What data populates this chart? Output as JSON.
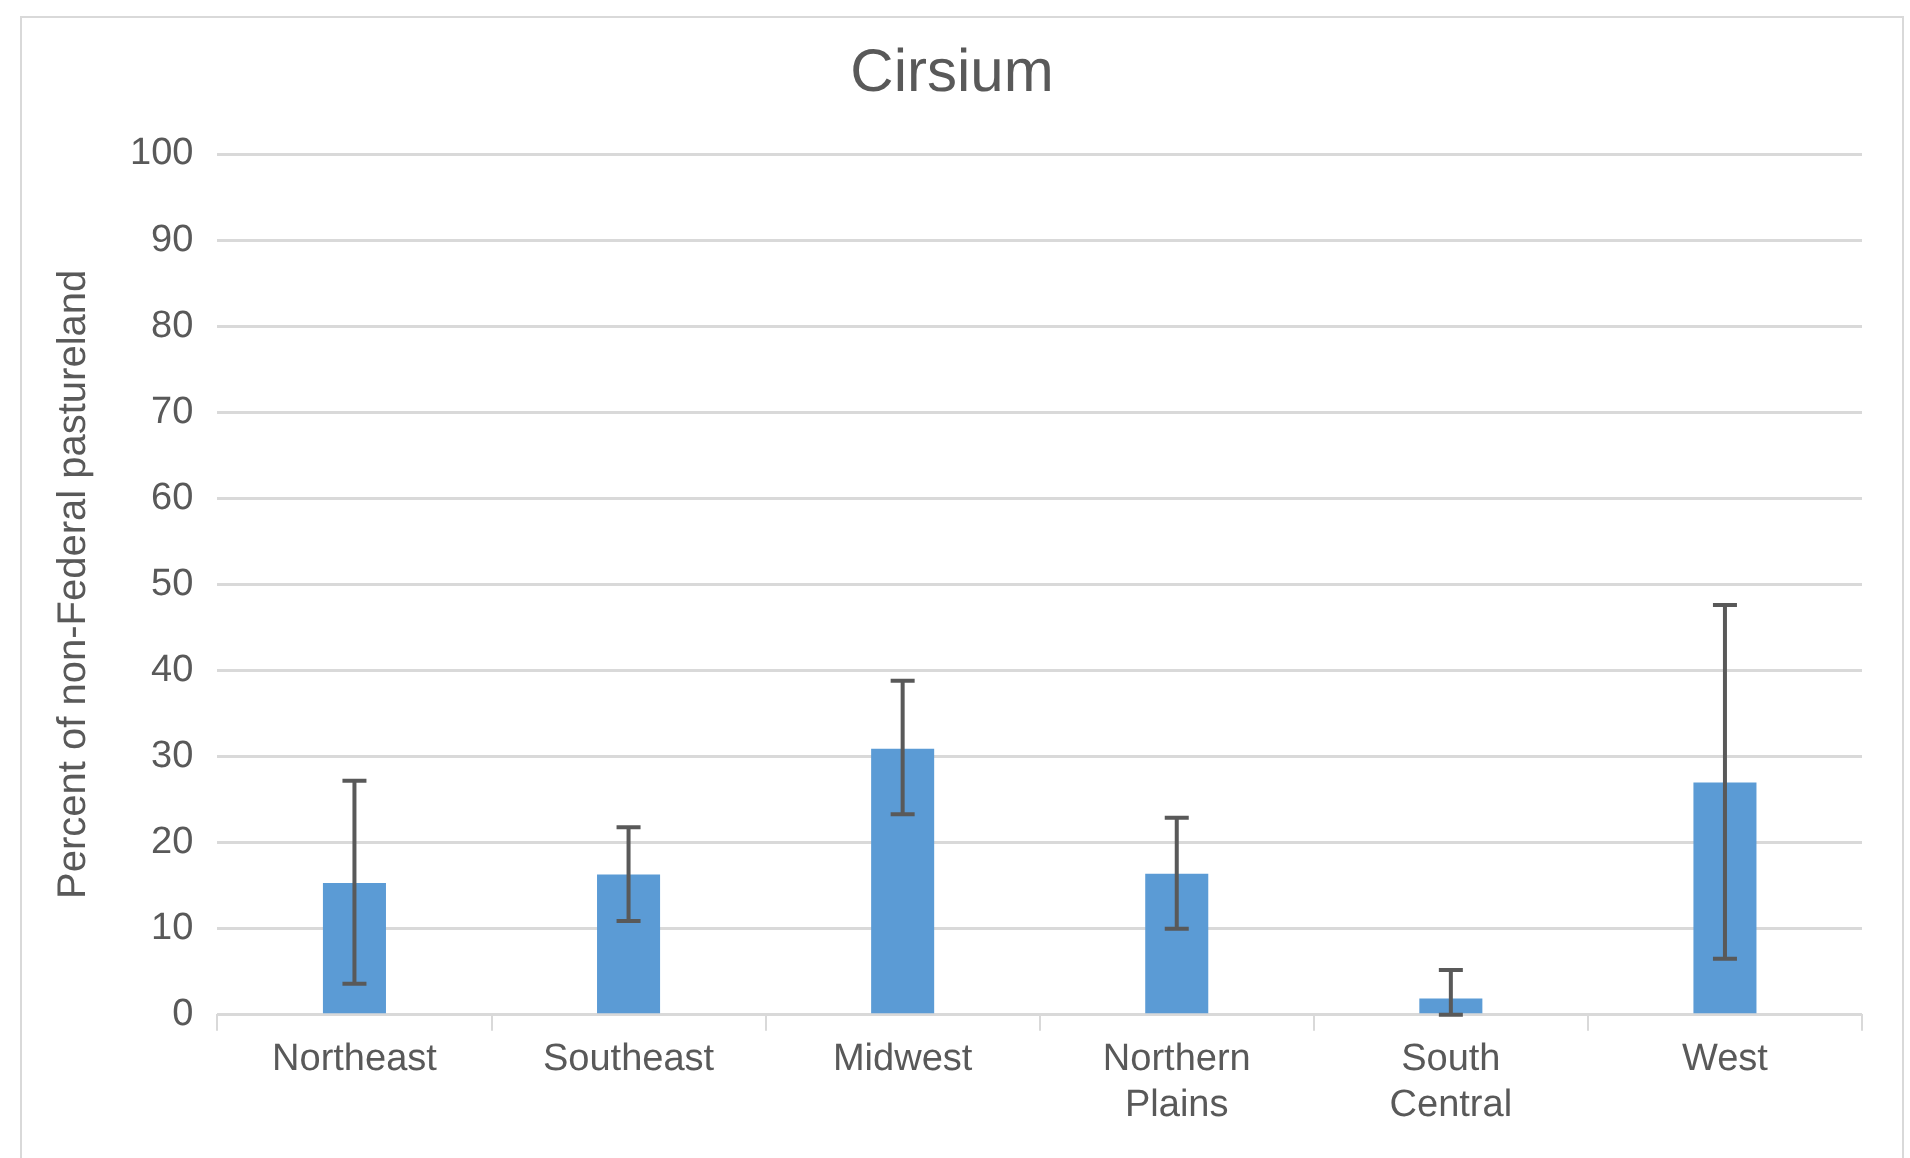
{
  "chart_data": {
    "type": "bar",
    "title": "Cirsium",
    "ylabel": "Percent of non-Federal pastureland",
    "categories": [
      "Northeast",
      "Southeast",
      "Midwest",
      "Northern Plains",
      "South Central",
      "West"
    ],
    "values": [
      15.3,
      16.3,
      30.9,
      16.4,
      1.9,
      27.0
    ],
    "errors": [
      [
        3.6,
        27.2
      ],
      [
        10.9,
        21.8
      ],
      [
        23.3,
        38.8
      ],
      [
        10.0,
        22.9
      ],
      [
        0,
        5.2
      ],
      [
        6.5,
        47.6
      ]
    ],
    "color": "#5b9bd5",
    "ylim": [
      0,
      100
    ],
    "yticks": [
      0,
      10,
      20,
      30,
      40,
      50,
      60,
      70,
      80,
      90,
      100
    ],
    "grid": "y",
    "legend": false
  }
}
